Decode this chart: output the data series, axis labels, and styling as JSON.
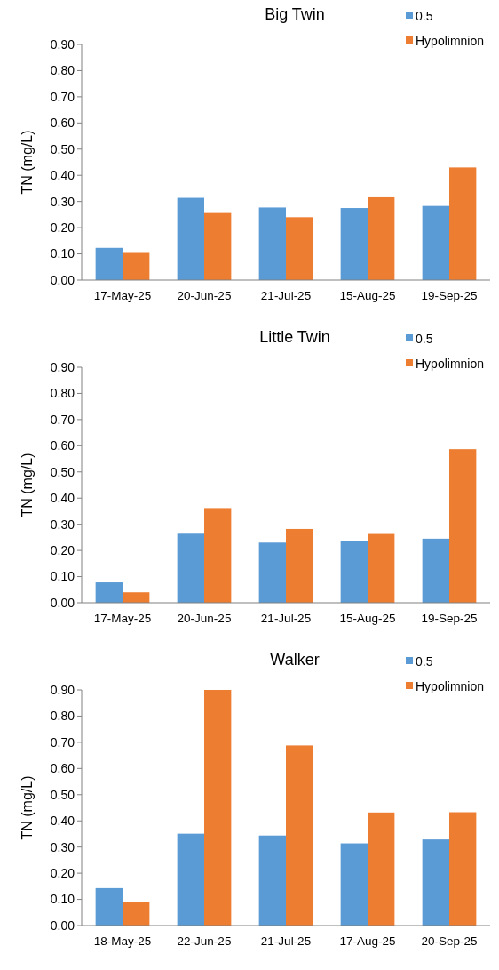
{
  "chart_data": [
    {
      "type": "bar",
      "title": "Big Twin",
      "ylabel": "TN (mg/L)",
      "categories": [
        "17-May-25",
        "20-Jun-25",
        "21-Jul-25",
        "15-Aug-25",
        "19-Sep-25"
      ],
      "series": [
        {
          "name": "0.5",
          "color": "#5b9bd5",
          "values": [
            0.123,
            0.314,
            0.277,
            0.275,
            0.283
          ]
        },
        {
          "name": "Hypolimnion",
          "color": "#ed7d31",
          "values": [
            0.107,
            0.256,
            0.24,
            0.316,
            0.43
          ]
        }
      ],
      "ylim": [
        0,
        0.9
      ],
      "yticks": [
        {
          "value": 0,
          "label": "0.00"
        },
        {
          "value": 0.1,
          "label": "0.10"
        },
        {
          "value": 0.2,
          "label": "0.20"
        },
        {
          "value": 0.3,
          "label": "0.30"
        },
        {
          "value": 0.4,
          "label": "0.40"
        },
        {
          "value": 0.5,
          "label": "0.50"
        },
        {
          "value": 0.6,
          "label": "0.60"
        },
        {
          "value": 0.7,
          "label": "0.70"
        },
        {
          "value": 0.8,
          "label": "0.80"
        },
        {
          "value": 0.9,
          "label": "0.90"
        }
      ],
      "legend": "top right"
    },
    {
      "type": "bar",
      "title": "Little Twin",
      "ylabel": "TN (mg/L)",
      "categories": [
        "17-May-25",
        "20-Jun-25",
        "21-Jul-25",
        "15-Aug-25",
        "19-Sep-25"
      ],
      "series": [
        {
          "name": "0.5",
          "color": "#5b9bd5",
          "values": [
            0.078,
            0.264,
            0.23,
            0.236,
            0.245
          ]
        },
        {
          "name": "Hypolimnion",
          "color": "#ed7d31",
          "values": [
            0.04,
            0.362,
            0.282,
            0.263,
            0.587
          ]
        }
      ],
      "ylim": [
        0,
        0.9
      ],
      "yticks": [
        {
          "value": 0,
          "label": "0.00"
        },
        {
          "value": 0.1,
          "label": "0.10"
        },
        {
          "value": 0.2,
          "label": "0.20"
        },
        {
          "value": 0.3,
          "label": "0.30"
        },
        {
          "value": 0.4,
          "label": "0.40"
        },
        {
          "value": 0.5,
          "label": "0.50"
        },
        {
          "value": 0.6,
          "label": "0.60"
        },
        {
          "value": 0.7,
          "label": "0.70"
        },
        {
          "value": 0.8,
          "label": "0.80"
        },
        {
          "value": 0.9,
          "label": "0.90"
        }
      ],
      "legend": "top right"
    },
    {
      "type": "bar",
      "title": "Walker",
      "ylabel": "TN (mg/L)",
      "categories": [
        "18-May-25",
        "22-Jun-25",
        "21-Jul-25",
        "17-Aug-25",
        "20-Sep-25"
      ],
      "series": [
        {
          "name": "0.5",
          "color": "#5b9bd5",
          "values": [
            0.143,
            0.351,
            0.344,
            0.314,
            0.329
          ]
        },
        {
          "name": "Hypolimnion",
          "color": "#ed7d31",
          "values": [
            0.091,
            0.9,
            0.688,
            0.432,
            0.433
          ]
        }
      ],
      "ylim": [
        0,
        0.9
      ],
      "yticks": [
        {
          "value": 0,
          "label": "0.00"
        },
        {
          "value": 0.1,
          "label": "0.10"
        },
        {
          "value": 0.2,
          "label": "0.20"
        },
        {
          "value": 0.3,
          "label": "0.30"
        },
        {
          "value": 0.4,
          "label": "0.40"
        },
        {
          "value": 0.5,
          "label": "0.50"
        },
        {
          "value": 0.6,
          "label": "0.60"
        },
        {
          "value": 0.7,
          "label": "0.70"
        },
        {
          "value": 0.8,
          "label": "0.80"
        },
        {
          "value": 0.9,
          "label": "0.90"
        }
      ],
      "legend": "top right"
    }
  ]
}
